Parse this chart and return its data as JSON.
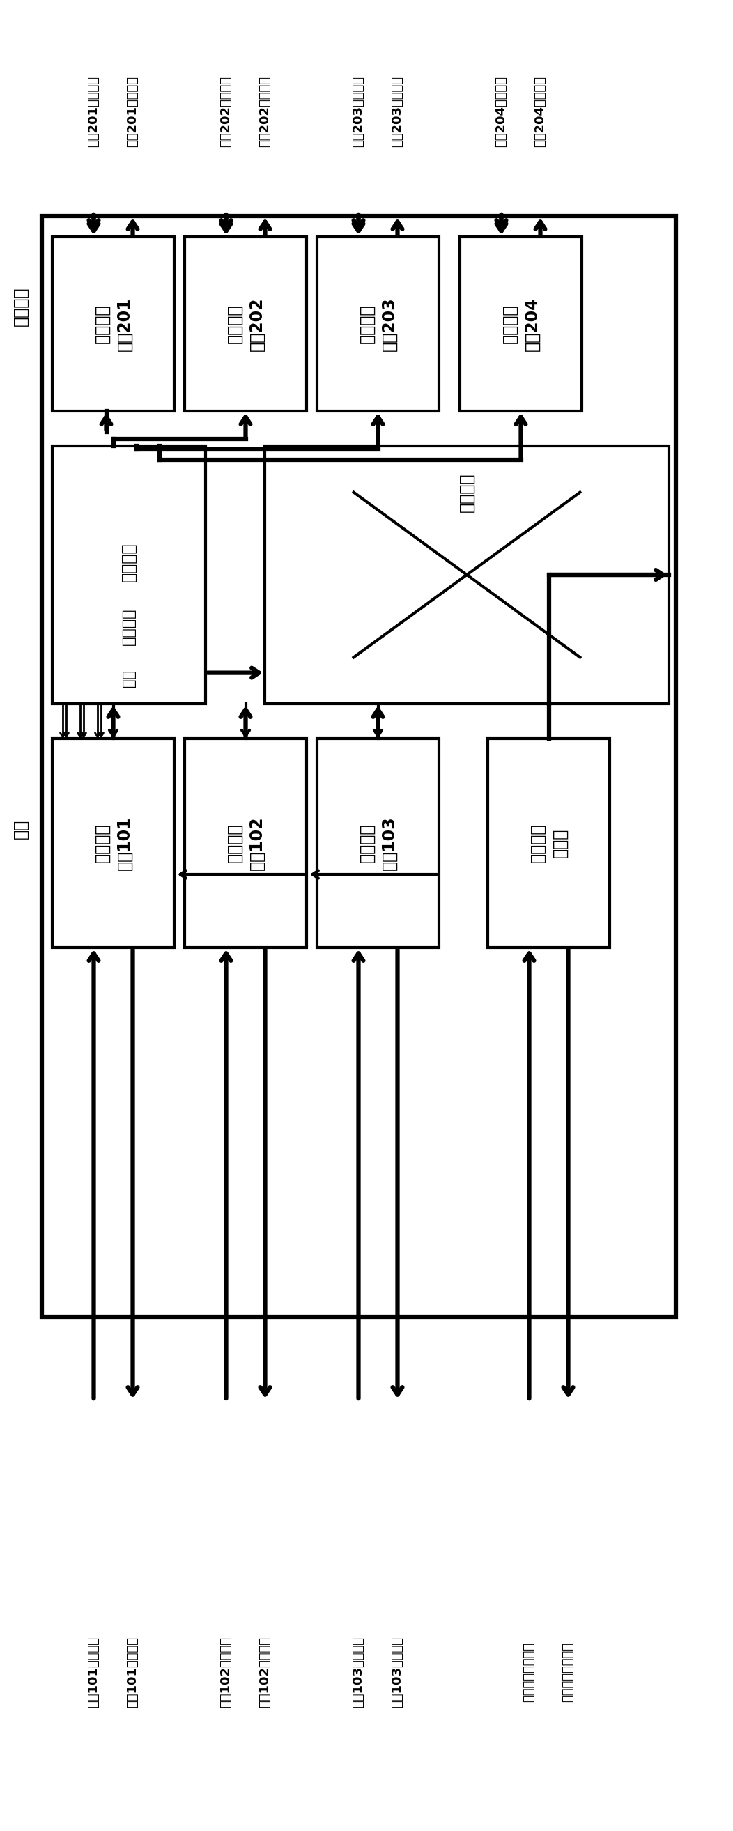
{
  "fig_width": 10.52,
  "fig_height": 26.28,
  "bg_color": "#ffffff",
  "out_labels": [
    "水平输出\n端口201",
    "垂直输出\n端口202",
    "本地输出\n端口203",
    "本地输出\n端口204"
  ],
  "in_labels": [
    "水平输入\n端口101",
    "垂直输入\n端口102",
    "本地输入\n端口103",
    "死锁控制\n器模块"
  ],
  "top_texts": [
    "端口201输入流控",
    "端口201输出数据",
    "端口202输入流控",
    "端口202输出数据",
    "端口203输入流控",
    "端口203输出数据",
    "端口204输入流控",
    "端口204输出数据"
  ],
  "bottom_texts": [
    "端口101输出流控",
    "端口101输入数据",
    "端口102输出流控",
    "端口102输入数据",
    "端口103输出流控",
    "端口103输入数据",
    "死锁控制信息输入",
    "死锁控制信息输出"
  ],
  "switch_label": "开关仲裁\n开关选择\n请求",
  "crossbar_label": "交叉开关",
  "output_ctrl_label": "输出控制",
  "allow_label": "允许"
}
